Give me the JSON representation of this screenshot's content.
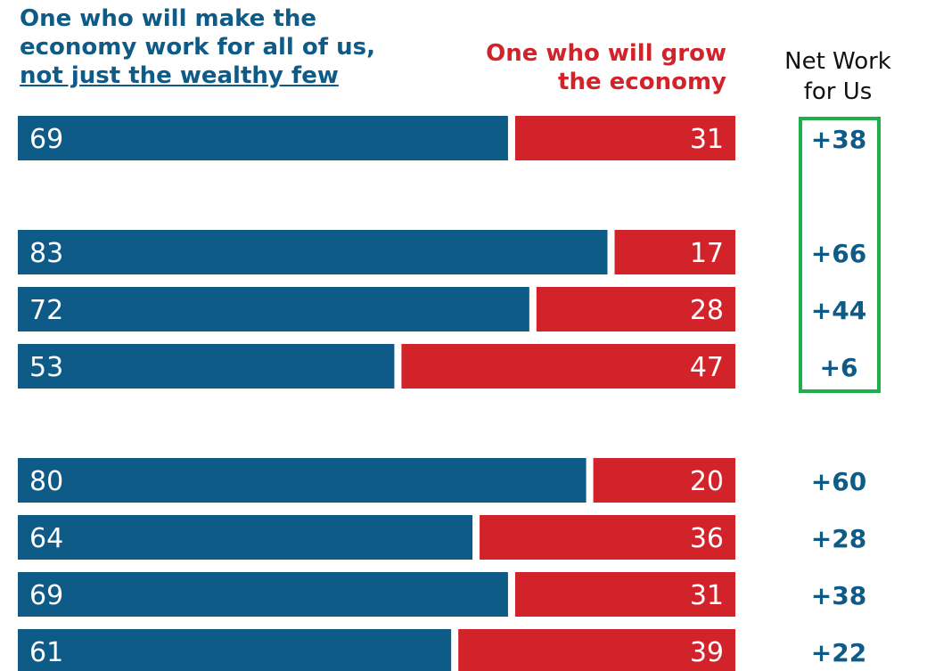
{
  "header": {
    "work_label_lines": [
      "One who will make the",
      "economy work for all of us,",
      "not just the wealthy few"
    ],
    "grow_label_lines": [
      "One who will grow",
      "the economy"
    ],
    "net_label_lines": [
      "Net Work",
      "for Us"
    ]
  },
  "colors": {
    "work": "#0f5b87",
    "grow": "#d2232a",
    "highlight_box": "#1fae4b",
    "net_text": "#0f5b87"
  },
  "chart_data": {
    "type": "bar",
    "stacked": true,
    "orientation": "horizontal",
    "xlim": [
      0,
      100
    ],
    "series": [
      {
        "name": "One who will make the economy work for all of us, not just the wealthy few",
        "values": [
          69,
          83,
          72,
          53,
          80,
          64,
          69,
          61
        ]
      },
      {
        "name": "One who will grow the economy",
        "values": [
          31,
          17,
          28,
          47,
          20,
          36,
          31,
          39
        ]
      }
    ],
    "net_values": [
      "+38",
      "+66",
      "+44",
      "+6",
      "+60",
      "+28",
      "+38",
      "+22"
    ],
    "highlighted_rows": [
      0,
      1,
      2,
      3
    ]
  }
}
